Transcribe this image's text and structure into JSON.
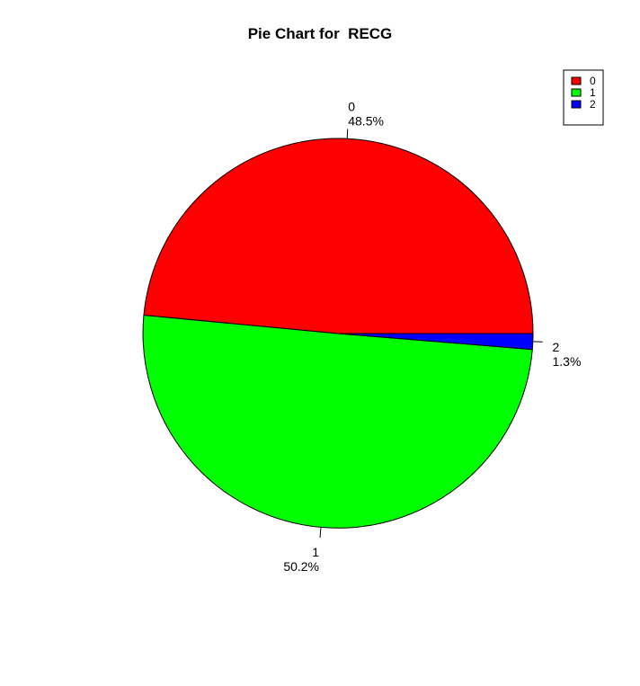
{
  "chart_data": {
    "type": "pie",
    "title": "Pie Chart for  RECG",
    "categories": [
      "0",
      "1",
      "2"
    ],
    "values": [
      48.5,
      50.2,
      1.3
    ],
    "labels": [
      "48.5%",
      "50.2%",
      "1.3%"
    ],
    "colors": [
      "#ff0000",
      "#00ff00",
      "#0000ff"
    ],
    "legend": {
      "position": "top-right",
      "entries": [
        "0",
        "1",
        "2"
      ]
    }
  }
}
